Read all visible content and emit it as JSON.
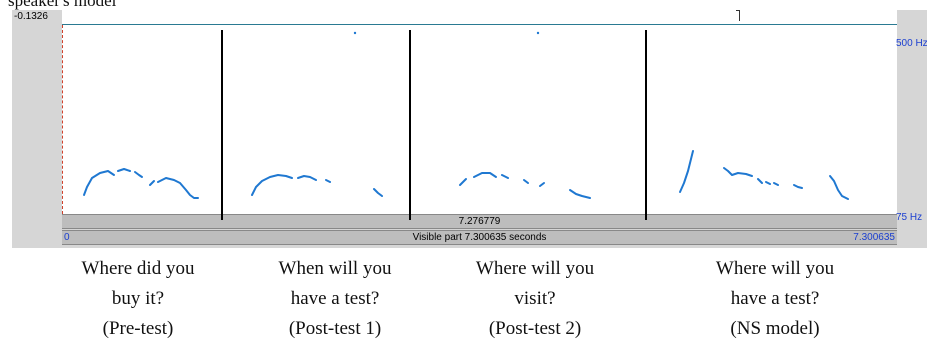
{
  "header": {
    "partial_caption": "speaker's model"
  },
  "praat": {
    "top_value": "-0.1326",
    "pitch_max_label": "500 Hz",
    "pitch_min_label": "75 Hz",
    "selection_duration": "7.276779",
    "visible_start": "0",
    "visible_part": "Visible part 7.300635 seconds",
    "visible_end": "7.300635"
  },
  "colors": {
    "pitch_curve": "#1f78d1",
    "divider": "#000000",
    "axis_label": "#1b3fd0",
    "cursor": "#d0402a"
  },
  "captions": [
    {
      "line1": "Where did you",
      "line2": "buy it?",
      "line3": "(Pre-test)"
    },
    {
      "line1": "When will you",
      "line2": "have a test?",
      "line3": "(Post-test 1)"
    },
    {
      "line1": "Where will you",
      "line2": "visit?",
      "line3": "(Post-test 2)"
    },
    {
      "line1": "Where will you",
      "line2": "have a test?",
      "line3": "(NS model)"
    }
  ]
}
